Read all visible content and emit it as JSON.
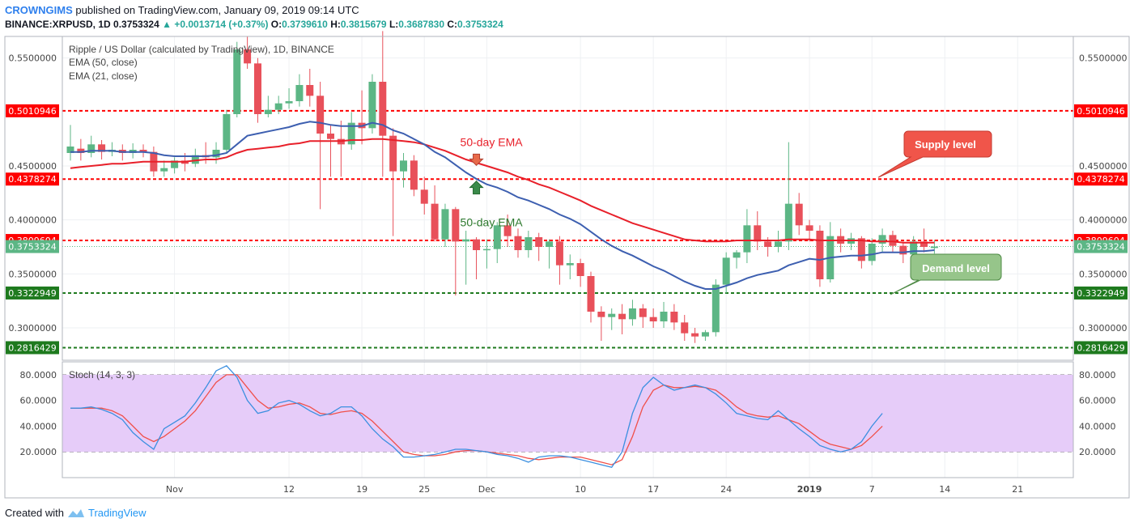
{
  "header": {
    "author": "CROWNGIMS",
    "published": "published on TradingView.com, January 09, 2019 09:14 UTC",
    "symbol": "BINANCE:XRPUSD, 1D",
    "last": "0.3753324",
    "change": "+0.0013714 (+0.37%)",
    "o_label": "O:",
    "o": "0.3739610",
    "h_label": "H:",
    "h": "0.3815679",
    "l_label": "L:",
    "l": "0.3687830",
    "c_label": "C:",
    "c": "0.3753324"
  },
  "legend": {
    "title": "Ripple / US Dollar (calculated by TradingView), 1D, BINANCE",
    "ema50": "EMA (50, close)",
    "ema21": "EMA (21, close)",
    "stoch": "Stoch (14, 3, 3)"
  },
  "footer": {
    "created_with": "Created with",
    "brand": "TradingView"
  },
  "colors": {
    "up": "#5cb685",
    "down": "#e8505a",
    "ema50": "#e8202a",
    "ema21": "#3d5fb0",
    "resistance": "#ff0000",
    "support": "#1e7a1e",
    "stoch_k": "#3b8fe0",
    "stoch_d": "#f0504a",
    "stoch_band": "#e6ccf9"
  },
  "chart_data": {
    "type": "candlestick",
    "y_axis_ticks": [
      "0.5500000",
      "0.4500000",
      "0.4000000",
      "0.3500000",
      "0.3000000"
    ],
    "y_axis_values": [
      0.55,
      0.45,
      0.4,
      0.35,
      0.3
    ],
    "x_axis_ticks": [
      {
        "label": "Nov",
        "index": 10
      },
      {
        "label": "12",
        "index": 21
      },
      {
        "label": "19",
        "index": 28
      },
      {
        "label": "25",
        "index": 34
      },
      {
        "label": "Dec",
        "index": 40
      },
      {
        "label": "10",
        "index": 49
      },
      {
        "label": "17",
        "index": 56
      },
      {
        "label": "24",
        "index": 63
      },
      {
        "label": "2019",
        "index": 71
      },
      {
        "label": "7",
        "index": 77
      },
      {
        "label": "14",
        "index": 84
      },
      {
        "label": "21",
        "index": 91
      }
    ],
    "price_levels": [
      {
        "value": 0.5010946,
        "label": "0.5010946",
        "kind": "resistance"
      },
      {
        "value": 0.4378274,
        "label": "0.4378274",
        "kind": "resistance"
      },
      {
        "value": 0.3809604,
        "label": "0.3809604",
        "kind": "resistance"
      },
      {
        "value": 0.3322949,
        "label": "0.3322949",
        "kind": "support"
      },
      {
        "value": 0.2816429,
        "label": "0.2816429",
        "kind": "support"
      }
    ],
    "last_price": {
      "value": 0.3753324,
      "label": "0.3753324"
    },
    "candles": [
      [
        0.462,
        0.468,
        0.488,
        0.455
      ],
      [
        0.466,
        0.462,
        0.475,
        0.455
      ],
      [
        0.462,
        0.47,
        0.478,
        0.458
      ],
      [
        0.47,
        0.463,
        0.474,
        0.456
      ],
      [
        0.463,
        0.465,
        0.472,
        0.459
      ],
      [
        0.465,
        0.462,
        0.47,
        0.455
      ],
      [
        0.462,
        0.465,
        0.471,
        0.457
      ],
      [
        0.465,
        0.463,
        0.47,
        0.458
      ],
      [
        0.463,
        0.445,
        0.468,
        0.44
      ],
      [
        0.445,
        0.448,
        0.455,
        0.44
      ],
      [
        0.448,
        0.455,
        0.458,
        0.443
      ],
      [
        0.455,
        0.452,
        0.462,
        0.445
      ],
      [
        0.452,
        0.46,
        0.466,
        0.449
      ],
      [
        0.46,
        0.458,
        0.472,
        0.452
      ],
      [
        0.458,
        0.465,
        0.472,
        0.452
      ],
      [
        0.465,
        0.498,
        0.502,
        0.462
      ],
      [
        0.498,
        0.558,
        0.565,
        0.495
      ],
      [
        0.558,
        0.545,
        0.57,
        0.54
      ],
      [
        0.545,
        0.498,
        0.55,
        0.49
      ],
      [
        0.498,
        0.502,
        0.515,
        0.495
      ],
      [
        0.502,
        0.508,
        0.515,
        0.498
      ],
      [
        0.508,
        0.51,
        0.522,
        0.503
      ],
      [
        0.51,
        0.525,
        0.535,
        0.505
      ],
      [
        0.525,
        0.515,
        0.54,
        0.505
      ],
      [
        0.515,
        0.48,
        0.528,
        0.41
      ],
      [
        0.48,
        0.475,
        0.488,
        0.44
      ],
      [
        0.475,
        0.47,
        0.492,
        0.44
      ],
      [
        0.47,
        0.49,
        0.5,
        0.465
      ],
      [
        0.49,
        0.485,
        0.52,
        0.47
      ],
      [
        0.485,
        0.528,
        0.535,
        0.48
      ],
      [
        0.528,
        0.478,
        0.575,
        0.44
      ],
      [
        0.478,
        0.445,
        0.485,
        0.385
      ],
      [
        0.445,
        0.455,
        0.462,
        0.43
      ],
      [
        0.455,
        0.428,
        0.46,
        0.422
      ],
      [
        0.428,
        0.415,
        0.44,
        0.405
      ],
      [
        0.415,
        0.382,
        0.432,
        0.38
      ],
      [
        0.382,
        0.41,
        0.415,
        0.375
      ],
      [
        0.41,
        0.38,
        0.412,
        0.33
      ],
      [
        0.38,
        0.382,
        0.39,
        0.34
      ],
      [
        0.382,
        0.372,
        0.384,
        0.345
      ],
      [
        0.372,
        0.373,
        0.382,
        0.355
      ],
      [
        0.373,
        0.395,
        0.398,
        0.36
      ],
      [
        0.395,
        0.385,
        0.405,
        0.375
      ],
      [
        0.385,
        0.372,
        0.392,
        0.365
      ],
      [
        0.372,
        0.384,
        0.39,
        0.365
      ],
      [
        0.384,
        0.375,
        0.388,
        0.362
      ],
      [
        0.375,
        0.38,
        0.382,
        0.355
      ],
      [
        0.38,
        0.358,
        0.385,
        0.34
      ],
      [
        0.358,
        0.36,
        0.368,
        0.345
      ],
      [
        0.36,
        0.348,
        0.364,
        0.338
      ],
      [
        0.348,
        0.315,
        0.352,
        0.305
      ],
      [
        0.315,
        0.31,
        0.32,
        0.288
      ],
      [
        0.31,
        0.313,
        0.318,
        0.298
      ],
      [
        0.313,
        0.308,
        0.322,
        0.294
      ],
      [
        0.308,
        0.318,
        0.326,
        0.302
      ],
      [
        0.318,
        0.31,
        0.322,
        0.3
      ],
      [
        0.31,
        0.306,
        0.318,
        0.3
      ],
      [
        0.306,
        0.315,
        0.324,
        0.3
      ],
      [
        0.315,
        0.305,
        0.322,
        0.298
      ],
      [
        0.305,
        0.295,
        0.312,
        0.288
      ],
      [
        0.295,
        0.292,
        0.3,
        0.286
      ],
      [
        0.292,
        0.296,
        0.298,
        0.288
      ],
      [
        0.296,
        0.34,
        0.345,
        0.292
      ],
      [
        0.34,
        0.365,
        0.37,
        0.332
      ],
      [
        0.365,
        0.37,
        0.372,
        0.355
      ],
      [
        0.37,
        0.395,
        0.41,
        0.36
      ],
      [
        0.395,
        0.38,
        0.408,
        0.372
      ],
      [
        0.38,
        0.375,
        0.384,
        0.366
      ],
      [
        0.375,
        0.38,
        0.39,
        0.37
      ],
      [
        0.38,
        0.415,
        0.472,
        0.372
      ],
      [
        0.415,
        0.395,
        0.425,
        0.386
      ],
      [
        0.395,
        0.39,
        0.4,
        0.38
      ],
      [
        0.39,
        0.345,
        0.395,
        0.338
      ],
      [
        0.345,
        0.385,
        0.398,
        0.342
      ],
      [
        0.385,
        0.378,
        0.392,
        0.37
      ],
      [
        0.378,
        0.383,
        0.388,
        0.372
      ],
      [
        0.383,
        0.362,
        0.385,
        0.355
      ],
      [
        0.362,
        0.378,
        0.383,
        0.358
      ],
      [
        0.378,
        0.386,
        0.392,
        0.37
      ],
      [
        0.386,
        0.376,
        0.39,
        0.37
      ],
      [
        0.376,
        0.368,
        0.38,
        0.36
      ],
      [
        0.368,
        0.38,
        0.385,
        0.364
      ],
      [
        0.38,
        0.375,
        0.392,
        0.37
      ],
      [
        0.373961,
        0.3753324,
        0.3815679,
        0.368783
      ]
    ],
    "ema21": [
      0.463,
      0.463,
      0.464,
      0.464,
      0.464,
      0.463,
      0.463,
      0.463,
      0.462,
      0.46,
      0.459,
      0.459,
      0.459,
      0.459,
      0.46,
      0.462,
      0.47,
      0.478,
      0.48,
      0.482,
      0.484,
      0.486,
      0.489,
      0.491,
      0.49,
      0.488,
      0.487,
      0.487,
      0.487,
      0.49,
      0.488,
      0.483,
      0.48,
      0.475,
      0.47,
      0.463,
      0.458,
      0.451,
      0.444,
      0.438,
      0.433,
      0.43,
      0.426,
      0.421,
      0.418,
      0.414,
      0.41,
      0.405,
      0.401,
      0.396,
      0.389,
      0.382,
      0.376,
      0.371,
      0.367,
      0.362,
      0.357,
      0.353,
      0.348,
      0.343,
      0.339,
      0.336,
      0.336,
      0.339,
      0.342,
      0.346,
      0.349,
      0.351,
      0.353,
      0.358,
      0.361,
      0.364,
      0.363,
      0.365,
      0.366,
      0.367,
      0.367,
      0.368,
      0.37,
      0.37,
      0.37,
      0.371,
      0.371,
      0.372
    ],
    "ema50": [
      0.448,
      0.449,
      0.45,
      0.451,
      0.452,
      0.452,
      0.453,
      0.454,
      0.454,
      0.454,
      0.454,
      0.454,
      0.455,
      0.456,
      0.456,
      0.458,
      0.462,
      0.465,
      0.466,
      0.467,
      0.468,
      0.47,
      0.471,
      0.473,
      0.473,
      0.473,
      0.473,
      0.474,
      0.474,
      0.475,
      0.475,
      0.474,
      0.473,
      0.472,
      0.47,
      0.467,
      0.464,
      0.46,
      0.456,
      0.453,
      0.45,
      0.447,
      0.444,
      0.44,
      0.437,
      0.433,
      0.43,
      0.426,
      0.422,
      0.418,
      0.413,
      0.409,
      0.405,
      0.401,
      0.397,
      0.394,
      0.391,
      0.388,
      0.385,
      0.382,
      0.381,
      0.38,
      0.38,
      0.38,
      0.381,
      0.381,
      0.381,
      0.381,
      0.381,
      0.382,
      0.382,
      0.382,
      0.381,
      0.381,
      0.381,
      0.381,
      0.381,
      0.38,
      0.38,
      0.38,
      0.379,
      0.379,
      0.379,
      0.379
    ],
    "stoch": {
      "y_axis_ticks": [
        "80.0000",
        "60.0000",
        "40.0000",
        "20.0000"
      ],
      "y_axis_values": [
        80,
        60,
        40,
        20
      ],
      "upper": 80,
      "lower": 20,
      "ymin": 0,
      "ymax": 90,
      "k": [
        54,
        54,
        55,
        53,
        50,
        45,
        35,
        28,
        22,
        38,
        43,
        48,
        58,
        70,
        83,
        87,
        78,
        60,
        50,
        52,
        58,
        60,
        57,
        52,
        48,
        50,
        55,
        55,
        48,
        38,
        30,
        24,
        16,
        16,
        17,
        18,
        20,
        22,
        22,
        21,
        20,
        18,
        17,
        15,
        12,
        16,
        17,
        17,
        16,
        14,
        12,
        10,
        8,
        20,
        50,
        70,
        78,
        72,
        68,
        70,
        72,
        70,
        65,
        58,
        50,
        48,
        46,
        45,
        52,
        45,
        38,
        32,
        25,
        22,
        20,
        22,
        28,
        40,
        50
      ],
      "d": [
        54,
        54,
        54,
        54,
        52,
        48,
        40,
        32,
        28,
        32,
        38,
        44,
        52,
        63,
        74,
        80,
        80,
        70,
        60,
        54,
        55,
        57,
        58,
        55,
        50,
        49,
        51,
        52,
        50,
        44,
        36,
        28,
        20,
        18,
        17,
        17,
        18,
        20,
        21,
        21,
        20,
        19,
        18,
        17,
        15,
        14,
        15,
        16,
        16,
        16,
        14,
        12,
        10,
        14,
        32,
        55,
        68,
        72,
        70,
        70,
        71,
        70,
        68,
        62,
        55,
        50,
        48,
        47,
        48,
        45,
        42,
        36,
        30,
        26,
        24,
        22,
        25,
        32,
        40
      ]
    },
    "annotations": [
      {
        "text": "50-day EMA",
        "color": "#e8202a",
        "index": 39,
        "value": 0.472,
        "arrow": "down",
        "arrow_value": 0.452
      },
      {
        "text": "50-day EMA",
        "color": "#2e7a2e",
        "index": 39,
        "value": 0.398,
        "arrow": "up",
        "arrow_value": 0.43
      }
    ],
    "callouts": [
      {
        "text": "Supply level",
        "kind": "supply"
      },
      {
        "text": "Demand level",
        "kind": "demand"
      }
    ]
  }
}
